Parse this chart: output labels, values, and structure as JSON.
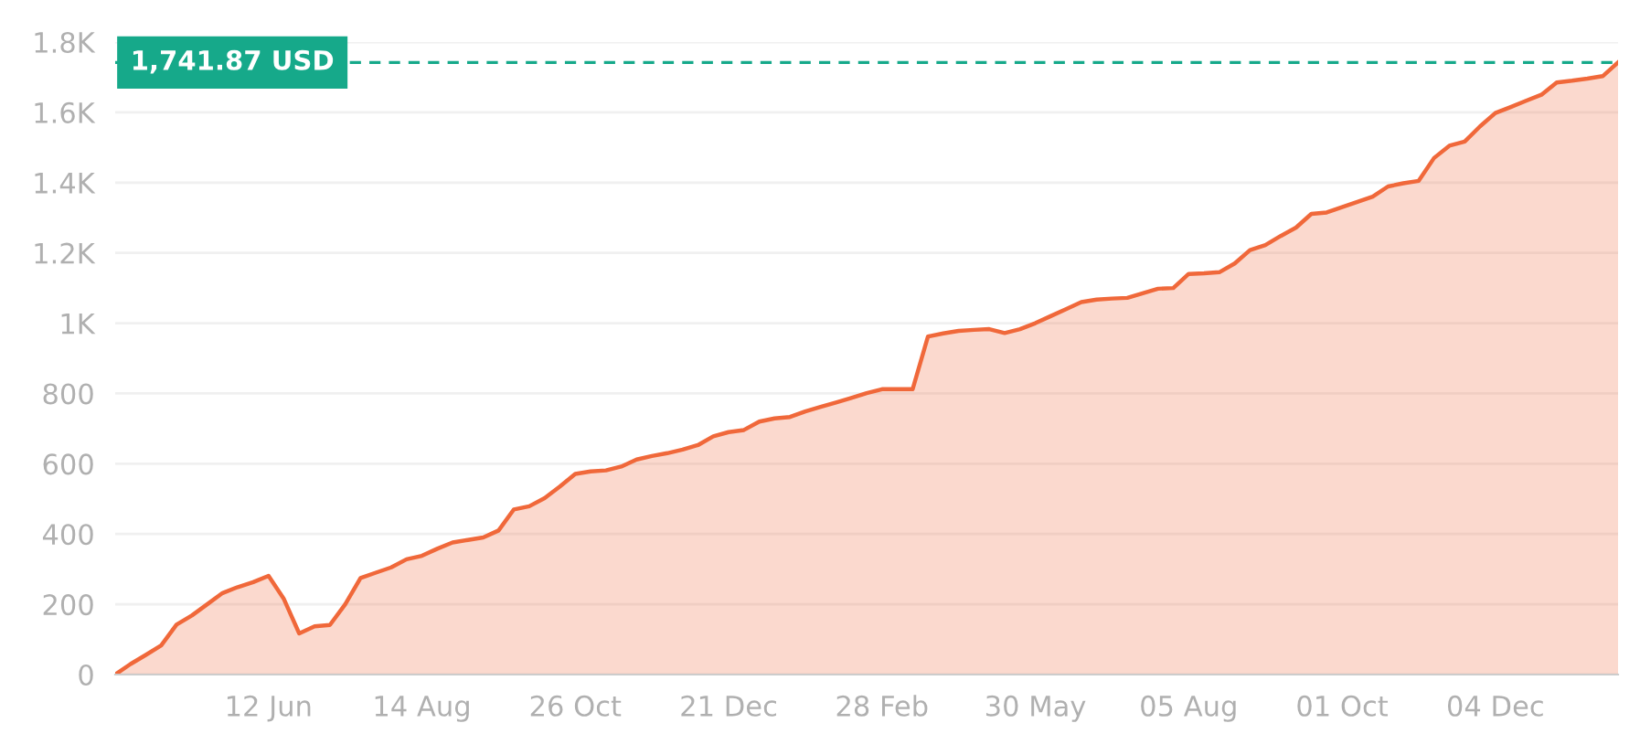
{
  "chart_data": {
    "type": "area",
    "categories": [
      null,
      null,
      null,
      null,
      null,
      null,
      null,
      null,
      null,
      null,
      "12 Jun",
      null,
      null,
      null,
      null,
      null,
      null,
      null,
      null,
      null,
      "14 Aug",
      null,
      null,
      null,
      null,
      null,
      null,
      null,
      null,
      null,
      "26 Oct",
      null,
      null,
      null,
      null,
      null,
      null,
      null,
      null,
      null,
      "21 Dec",
      null,
      null,
      null,
      null,
      null,
      null,
      null,
      null,
      null,
      "28 Feb",
      null,
      null,
      null,
      null,
      null,
      null,
      null,
      null,
      null,
      "30 May",
      null,
      null,
      null,
      null,
      null,
      null,
      null,
      null,
      null,
      "05 Aug",
      null,
      null,
      null,
      null,
      null,
      null,
      null,
      null,
      null,
      "01 Oct",
      null,
      null,
      null,
      null,
      null,
      null,
      null,
      null,
      null,
      "04 Dec",
      null,
      null,
      null,
      null,
      null,
      null,
      null,
      null
    ],
    "series": [
      {
        "color": "#f0683a",
        "values": [
          0,
          30,
          56,
          83,
          142,
          168,
          200,
          232,
          249,
          263,
          281,
          215,
          117,
          137,
          141,
          200,
          275,
          290,
          305,
          328,
          338,
          358,
          376,
          383,
          390,
          410,
          470,
          479,
          502,
          535,
          571,
          578,
          581,
          592,
          612,
          622,
          630,
          640,
          653,
          678,
          690,
          696,
          720,
          729,
          733,
          749,
          762,
          774,
          787,
          801,
          812,
          812,
          812,
          962,
          971,
          978,
          981,
          983,
          972,
          983,
          1000,
          1020,
          1040,
          1060,
          1067,
          1070,
          1072,
          1085,
          1098,
          1100,
          1140,
          1142,
          1145,
          1170,
          1208,
          1222,
          1248,
          1272,
          1311,
          1315,
          1330,
          1345,
          1360,
          1389,
          1398,
          1405,
          1470,
          1505,
          1517,
          1560,
          1598,
          1615,
          1633,
          1650,
          1685,
          1690,
          1696,
          1703,
          1741.87
        ]
      }
    ],
    "ylim": [
      0,
      1800
    ],
    "yticks": [
      0,
      200,
      400,
      600,
      800,
      {
        "value": 1000,
        "label": "1K"
      },
      {
        "value": 1200,
        "label": "1.2K"
      },
      {
        "value": 1400,
        "label": "1.4K"
      },
      {
        "value": 1600,
        "label": "1.6K"
      },
      {
        "value": 1800,
        "label": "1.8K"
      }
    ],
    "ref_lines": [
      {
        "axis": "y",
        "value": 1741.87,
        "label": "1,741.87 USD",
        "color": "#16a98a",
        "line_style": "dashed"
      }
    ],
    "grid": "y",
    "legend": false
  }
}
